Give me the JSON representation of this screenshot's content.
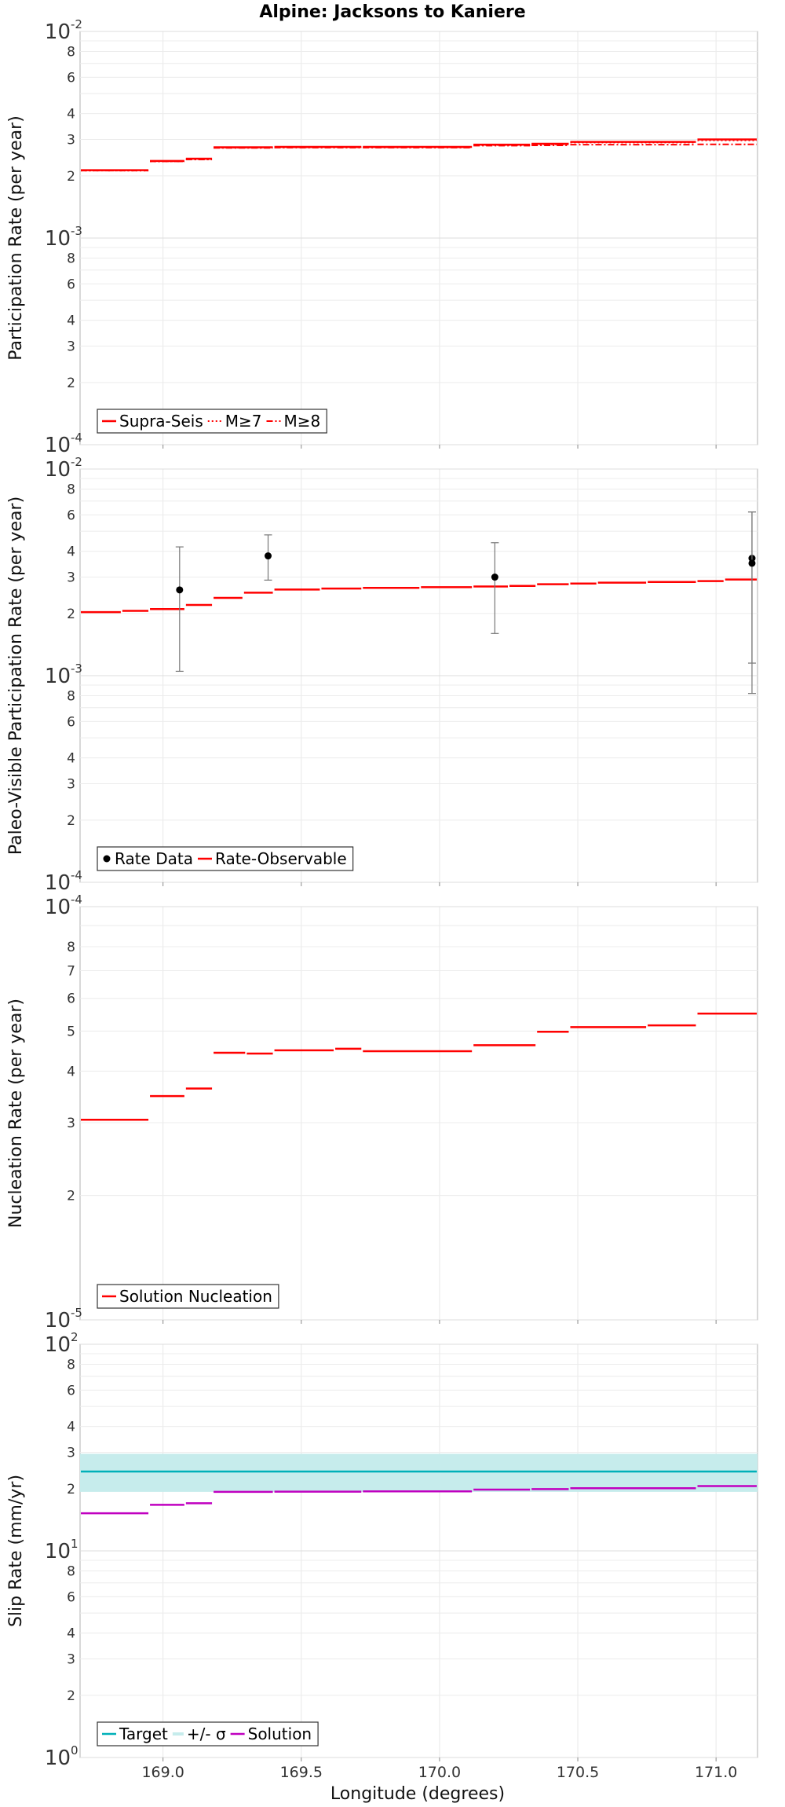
{
  "figure": {
    "title": "Alpine: Jacksons to Kaniere",
    "xlabel": "Longitude (degrees)",
    "x_ticks": [
      "169.0",
      "169.5",
      "170.0",
      "170.5",
      "171.0"
    ]
  },
  "chart_data": [
    {
      "type": "line",
      "ylabel": "Participation Rate (per year)",
      "yscale": "log",
      "ylim": [
        0.0001,
        0.01
      ],
      "xlim": [
        168.7,
        171.15
      ],
      "grid": true,
      "legend_position": "bottom-left",
      "y_decade_labels": [
        {
          "base": "10",
          "exp": "-2"
        },
        {
          "base": "10",
          "exp": "-3"
        },
        {
          "base": "10",
          "exp": "-4"
        }
      ],
      "y_minor_labels": [
        "8",
        "6",
        "4",
        "3",
        "2"
      ],
      "series": [
        {
          "name": "Supra-Seis",
          "color": "#ff0000",
          "style": "solid",
          "steps": [
            {
              "x0": 168.7,
              "x1": 168.95,
              "y": 0.00213
            },
            {
              "x0": 168.95,
              "x1": 169.08,
              "y": 0.00236
            },
            {
              "x0": 169.08,
              "x1": 169.18,
              "y": 0.00242
            },
            {
              "x0": 169.18,
              "x1": 169.4,
              "y": 0.00275
            },
            {
              "x0": 169.4,
              "x1": 169.72,
              "y": 0.00276
            },
            {
              "x0": 169.72,
              "x1": 170.12,
              "y": 0.00276
            },
            {
              "x0": 170.12,
              "x1": 170.33,
              "y": 0.00283
            },
            {
              "x0": 170.33,
              "x1": 170.47,
              "y": 0.00286
            },
            {
              "x0": 170.47,
              "x1": 170.93,
              "y": 0.00292
            },
            {
              "x0": 170.93,
              "x1": 171.15,
              "y": 0.003
            }
          ]
        },
        {
          "name": "M≥7",
          "color": "#ff0000",
          "style": "dotted",
          "steps": [
            {
              "x0": 168.7,
              "x1": 168.95,
              "y": 0.00212
            },
            {
              "x0": 168.95,
              "x1": 169.08,
              "y": 0.00235
            },
            {
              "x0": 169.08,
              "x1": 169.18,
              "y": 0.00241
            },
            {
              "x0": 169.18,
              "x1": 169.4,
              "y": 0.00274
            },
            {
              "x0": 169.4,
              "x1": 169.72,
              "y": 0.00275
            },
            {
              "x0": 169.72,
              "x1": 170.12,
              "y": 0.00275
            },
            {
              "x0": 170.12,
              "x1": 170.33,
              "y": 0.00282
            },
            {
              "x0": 170.33,
              "x1": 170.47,
              "y": 0.00284
            },
            {
              "x0": 170.47,
              "x1": 170.93,
              "y": 0.0029
            },
            {
              "x0": 170.93,
              "x1": 171.15,
              "y": 0.00297
            }
          ]
        },
        {
          "name": "M≥8",
          "color": "#ff0000",
          "style": "dashdot",
          "steps": [
            {
              "x0": 168.7,
              "x1": 168.95,
              "y": 0.00212
            },
            {
              "x0": 168.95,
              "x1": 169.08,
              "y": 0.00235
            },
            {
              "x0": 169.08,
              "x1": 169.18,
              "y": 0.0024
            },
            {
              "x0": 169.18,
              "x1": 169.4,
              "y": 0.00273
            },
            {
              "x0": 169.4,
              "x1": 169.72,
              "y": 0.00274
            },
            {
              "x0": 169.72,
              "x1": 170.12,
              "y": 0.00274
            },
            {
              "x0": 170.12,
              "x1": 170.33,
              "y": 0.0028
            },
            {
              "x0": 170.33,
              "x1": 170.47,
              "y": 0.00281
            },
            {
              "x0": 170.47,
              "x1": 170.93,
              "y": 0.00283
            },
            {
              "x0": 170.93,
              "x1": 171.15,
              "y": 0.00284
            }
          ]
        }
      ]
    },
    {
      "type": "line",
      "ylabel": "Paleo-Visible Participation Rate (per year)",
      "yscale": "log",
      "ylim": [
        0.0001,
        0.01
      ],
      "xlim": [
        168.7,
        171.15
      ],
      "grid": true,
      "legend_position": "bottom-left",
      "y_decade_labels": [
        {
          "base": "10",
          "exp": "-2"
        },
        {
          "base": "10",
          "exp": "-3"
        },
        {
          "base": "10",
          "exp": "-4"
        }
      ],
      "y_minor_labels": [
        "8",
        "6",
        "4",
        "3",
        "2"
      ],
      "series": [
        {
          "name": "Rate-Observable",
          "color": "#ff0000",
          "style": "solid",
          "steps": [
            {
              "x0": 168.7,
              "x1": 168.85,
              "y": 0.00203
            },
            {
              "x0": 168.85,
              "x1": 168.95,
              "y": 0.00206
            },
            {
              "x0": 168.95,
              "x1": 169.08,
              "y": 0.0021
            },
            {
              "x0": 169.08,
              "x1": 169.18,
              "y": 0.0022
            },
            {
              "x0": 169.18,
              "x1": 169.29,
              "y": 0.00238
            },
            {
              "x0": 169.29,
              "x1": 169.4,
              "y": 0.00252
            },
            {
              "x0": 169.4,
              "x1": 169.57,
              "y": 0.00261
            },
            {
              "x0": 169.57,
              "x1": 169.72,
              "y": 0.00264
            },
            {
              "x0": 169.72,
              "x1": 169.93,
              "y": 0.00266
            },
            {
              "x0": 169.93,
              "x1": 170.12,
              "y": 0.00268
            },
            {
              "x0": 170.12,
              "x1": 170.25,
              "y": 0.0027
            },
            {
              "x0": 170.25,
              "x1": 170.35,
              "y": 0.00272
            },
            {
              "x0": 170.35,
              "x1": 170.47,
              "y": 0.00277
            },
            {
              "x0": 170.47,
              "x1": 170.57,
              "y": 0.00279
            },
            {
              "x0": 170.57,
              "x1": 170.75,
              "y": 0.00282
            },
            {
              "x0": 170.75,
              "x1": 170.93,
              "y": 0.00284
            },
            {
              "x0": 170.93,
              "x1": 171.03,
              "y": 0.00287
            },
            {
              "x0": 171.03,
              "x1": 171.15,
              "y": 0.00292
            }
          ]
        }
      ],
      "points": {
        "name": "Rate Data",
        "color": "#000000",
        "values": [
          {
            "x": 169.06,
            "y": 0.0026,
            "lo": 0.00105,
            "hi": 0.0042
          },
          {
            "x": 169.38,
            "y": 0.0038,
            "lo": 0.0029,
            "hi": 0.0048
          },
          {
            "x": 170.2,
            "y": 0.003,
            "lo": 0.0016,
            "hi": 0.0044
          },
          {
            "x": 171.13,
            "y": 0.0037,
            "lo": 0.00115,
            "hi": 0.0062
          },
          {
            "x": 171.13,
            "y": 0.0035,
            "lo": 0.00082,
            "hi": 0.0062
          }
        ]
      }
    },
    {
      "type": "line",
      "ylabel": "Nucleation Rate (per year)",
      "yscale": "log",
      "ylim": [
        1e-05,
        0.0001
      ],
      "xlim": [
        168.7,
        171.15
      ],
      "grid": true,
      "legend_position": "bottom-left",
      "y_decade_labels": [
        {
          "base": "10",
          "exp": "-4"
        },
        {
          "base": "10",
          "exp": "-5"
        }
      ],
      "y_minor_labels": [
        "8",
        "7",
        "6",
        "5",
        "4",
        "3",
        "2"
      ],
      "series": [
        {
          "name": "Solution Nucleation",
          "color": "#ff0000",
          "style": "solid",
          "steps": [
            {
              "x0": 168.7,
              "x1": 168.95,
              "y": 3.05e-05
            },
            {
              "x0": 168.95,
              "x1": 169.08,
              "y": 3.48e-05
            },
            {
              "x0": 169.08,
              "x1": 169.18,
              "y": 3.63e-05
            },
            {
              "x0": 169.18,
              "x1": 169.3,
              "y": 4.43e-05
            },
            {
              "x0": 169.3,
              "x1": 169.4,
              "y": 4.41e-05
            },
            {
              "x0": 169.4,
              "x1": 169.62,
              "y": 4.49e-05
            },
            {
              "x0": 169.62,
              "x1": 169.72,
              "y": 4.53e-05
            },
            {
              "x0": 169.72,
              "x1": 170.12,
              "y": 4.47e-05
            },
            {
              "x0": 170.12,
              "x1": 170.35,
              "y": 4.62e-05
            },
            {
              "x0": 170.35,
              "x1": 170.47,
              "y": 4.98e-05
            },
            {
              "x0": 170.47,
              "x1": 170.75,
              "y": 5.11e-05
            },
            {
              "x0": 170.75,
              "x1": 170.93,
              "y": 5.16e-05
            },
            {
              "x0": 170.93,
              "x1": 171.15,
              "y": 5.51e-05
            }
          ]
        }
      ]
    },
    {
      "type": "line",
      "ylabel": "Slip Rate (mm/yr)",
      "yscale": "log",
      "ylim": [
        1,
        100
      ],
      "xlim": [
        168.7,
        171.15
      ],
      "grid": true,
      "legend_position": "bottom-left",
      "y_decade_labels": [
        {
          "base": "10",
          "exp": "2"
        },
        {
          "base": "10",
          "exp": "1"
        },
        {
          "base": "10",
          "exp": "0"
        }
      ],
      "y_minor_labels": [
        "8",
        "6",
        "4",
        "3",
        "2"
      ],
      "band": {
        "name": "+/- σ",
        "color": "#c6ecec",
        "lo": 19.3,
        "hi": 29.5
      },
      "series": [
        {
          "name": "Target",
          "color": "#00b0b8",
          "style": "solid",
          "steps": [
            {
              "x0": 168.7,
              "x1": 171.15,
              "y": 24.2
            }
          ]
        },
        {
          "name": "Solution",
          "color": "#c000c0",
          "style": "solid",
          "steps": [
            {
              "x0": 168.7,
              "x1": 168.95,
              "y": 15.2
            },
            {
              "x0": 168.95,
              "x1": 169.08,
              "y": 16.7
            },
            {
              "x0": 169.08,
              "x1": 169.18,
              "y": 17.0
            },
            {
              "x0": 169.18,
              "x1": 169.4,
              "y": 19.3
            },
            {
              "x0": 169.4,
              "x1": 169.72,
              "y": 19.35
            },
            {
              "x0": 169.72,
              "x1": 170.12,
              "y": 19.4
            },
            {
              "x0": 170.12,
              "x1": 170.33,
              "y": 19.8
            },
            {
              "x0": 170.33,
              "x1": 170.47,
              "y": 19.9
            },
            {
              "x0": 170.47,
              "x1": 170.93,
              "y": 20.1
            },
            {
              "x0": 170.93,
              "x1": 171.15,
              "y": 20.6
            }
          ]
        }
      ]
    }
  ]
}
